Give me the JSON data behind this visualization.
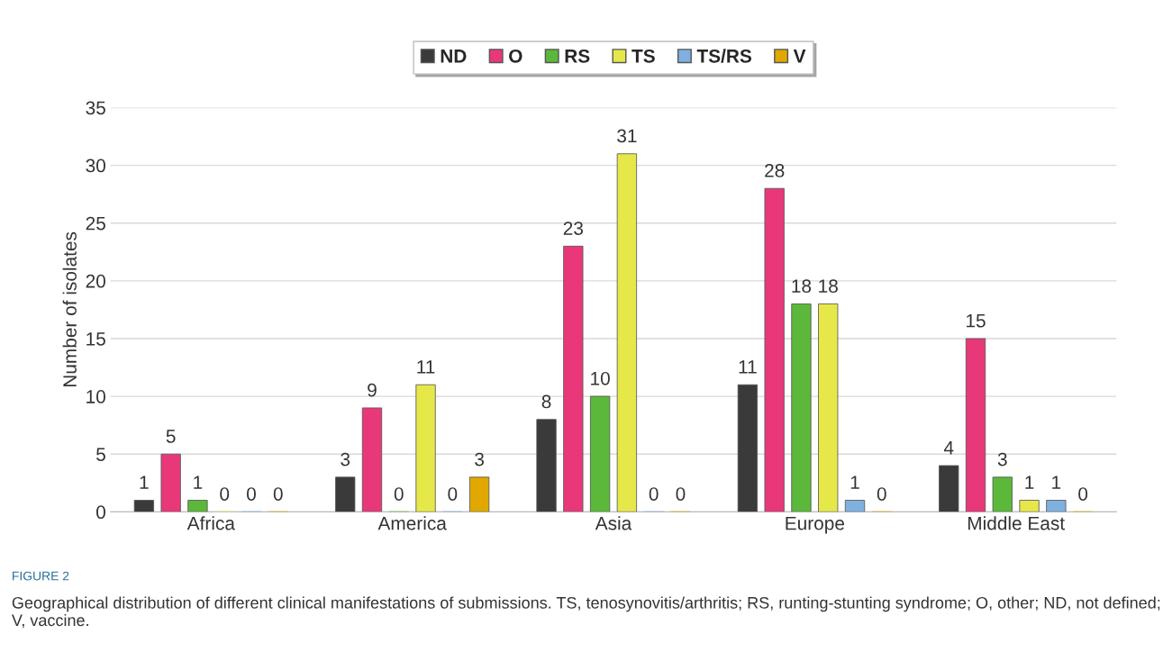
{
  "chart_data": {
    "type": "bar",
    "ylabel": "Number of isolates",
    "categories": [
      "Africa",
      "America",
      "Asia",
      "Europe",
      "Middle East"
    ],
    "series": [
      {
        "name": "ND",
        "color": "#3a3a3a",
        "values": [
          1,
          3,
          8,
          11,
          4
        ]
      },
      {
        "name": "O",
        "color": "#e8387a",
        "values": [
          5,
          9,
          23,
          28,
          15
        ]
      },
      {
        "name": "RS",
        "color": "#5cb83a",
        "values": [
          1,
          0,
          10,
          18,
          3
        ]
      },
      {
        "name": "TS",
        "color": "#e6e84a",
        "values": [
          0,
          11,
          31,
          18,
          1
        ]
      },
      {
        "name": "TS/RS",
        "color": "#7fb0e0",
        "values": [
          0,
          0,
          0,
          1,
          1
        ]
      },
      {
        "name": "V",
        "color": "#e0a800",
        "values": [
          0,
          3,
          0,
          0,
          0
        ]
      }
    ],
    "ylim": [
      0,
      35
    ],
    "yticks": [
      0,
      5,
      10,
      15,
      20,
      25,
      30,
      35
    ],
    "grid": "y",
    "legend": "top",
    "data_labels": true,
    "annotations": [
      "FIGURE 2",
      "Geographical distribution of different clinical manifestations of submissions. TS, tenosynovitis/arthritis; RS, runting-stunting syndrome; O, other; ND, not defined; V, vaccine."
    ]
  }
}
